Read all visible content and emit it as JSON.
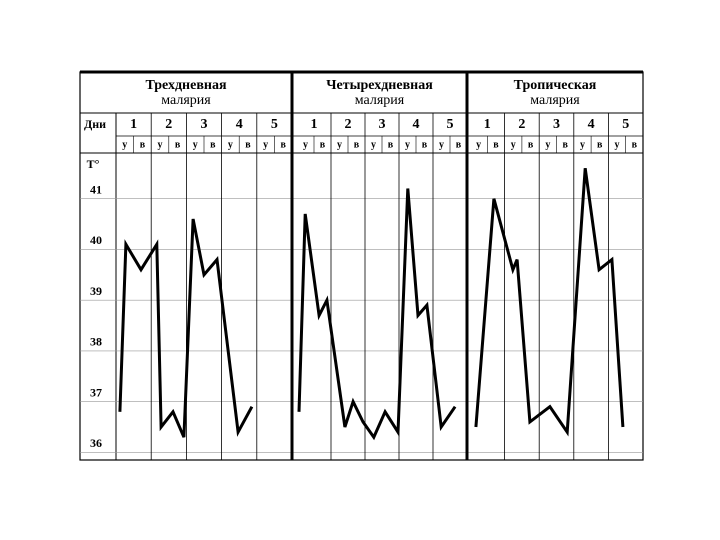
{
  "chart_data": [
    {
      "type": "line",
      "title": "Трехдневная",
      "subtitle": "малярия",
      "xlabel": "Дни",
      "ylabel": "T°",
      "categories": [
        "1",
        "2",
        "3",
        "4",
        "5"
      ],
      "slot_labels": [
        "у",
        "в",
        "у",
        "в",
        "у",
        "в",
        "у",
        "в",
        "у",
        "в"
      ],
      "xlim": [
        0,
        5
      ],
      "ylim": [
        35.85,
        41.9
      ],
      "yticks": [
        36,
        37,
        38,
        39,
        40,
        41
      ],
      "color": "#000000",
      "x": [
        0.11,
        0.28,
        0.71,
        1.16,
        1.28,
        1.62,
        1.93,
        2.19,
        2.5,
        2.87,
        3.47,
        3.86
      ],
      "values": [
        36.8,
        40.1,
        39.6,
        40.1,
        36.5,
        36.8,
        36.3,
        40.6,
        39.5,
        39.8,
        36.4,
        36.9
      ]
    },
    {
      "type": "line",
      "title": "Четырехдневная",
      "subtitle": "малярия",
      "categories": [
        "1",
        "2",
        "3",
        "4",
        "5"
      ],
      "slot_labels": [
        "у",
        "в",
        "у",
        "в",
        "у",
        "в",
        "у",
        "в",
        "у",
        "в"
      ],
      "xlim": [
        0,
        5
      ],
      "ylim": [
        35.85,
        41.9
      ],
      "color": "#000000",
      "x": [
        0.06,
        0.24,
        0.65,
        0.88,
        1.41,
        1.65,
        1.94,
        2.26,
        2.59,
        2.97,
        3.26,
        3.56,
        3.82,
        4.24,
        4.65
      ],
      "values": [
        36.8,
        40.7,
        38.7,
        39.0,
        36.5,
        37.0,
        36.6,
        36.3,
        36.8,
        36.4,
        41.2,
        38.7,
        38.9,
        36.5,
        36.9
      ]
    },
    {
      "type": "line",
      "title": "Тропическая",
      "subtitle": "малярия",
      "categories": [
        "1",
        "2",
        "3",
        "4",
        "5"
      ],
      "slot_labels": [
        "у",
        "в",
        "у",
        "в",
        "у",
        "в",
        "у",
        "в",
        "у",
        "в"
      ],
      "xlim": [
        0,
        5
      ],
      "ylim": [
        35.85,
        41.9
      ],
      "color": "#000000",
      "x": [
        0.17,
        0.69,
        1.24,
        1.36,
        1.73,
        2.31,
        2.81,
        3.33,
        3.73,
        4.1,
        4.42
      ],
      "values": [
        36.5,
        41.0,
        39.6,
        39.8,
        36.6,
        36.9,
        36.4,
        41.6,
        39.6,
        39.8,
        36.5
      ]
    }
  ]
}
